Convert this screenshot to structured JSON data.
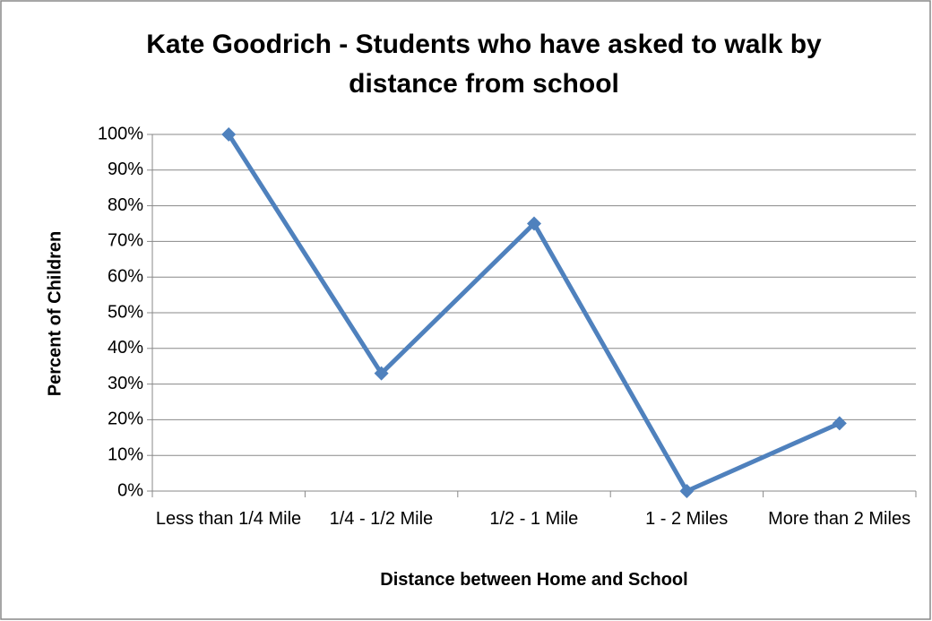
{
  "chart_data": {
    "type": "line",
    "title": "Kate Goodrich - Students who have asked to walk by distance from school",
    "x_label": "Distance between Home and School",
    "y_label": "Percent of Children",
    "categories": [
      "Less than 1/4 Mile",
      "1/4 - 1/2 Mile",
      "1/2 - 1 Mile",
      "1 - 2 Miles",
      "More than 2 Miles"
    ],
    "series": [
      {
        "name": "Percent of Children",
        "color": "#4f81bd",
        "values": [
          100,
          33,
          75,
          0,
          19
        ]
      }
    ],
    "ylim": [
      0,
      100
    ],
    "yticks": [
      {
        "value": 0,
        "label": "0%"
      },
      {
        "value": 10,
        "label": "10%"
      },
      {
        "value": 20,
        "label": "20%"
      },
      {
        "value": 30,
        "label": "30%"
      },
      {
        "value": 40,
        "label": "40%"
      },
      {
        "value": 50,
        "label": "50%"
      },
      {
        "value": 60,
        "label": "60%"
      },
      {
        "value": 70,
        "label": "70%"
      },
      {
        "value": 80,
        "label": "80%"
      },
      {
        "value": 90,
        "label": "90%"
      },
      {
        "value": 100,
        "label": "100%"
      }
    ],
    "grid": true
  }
}
